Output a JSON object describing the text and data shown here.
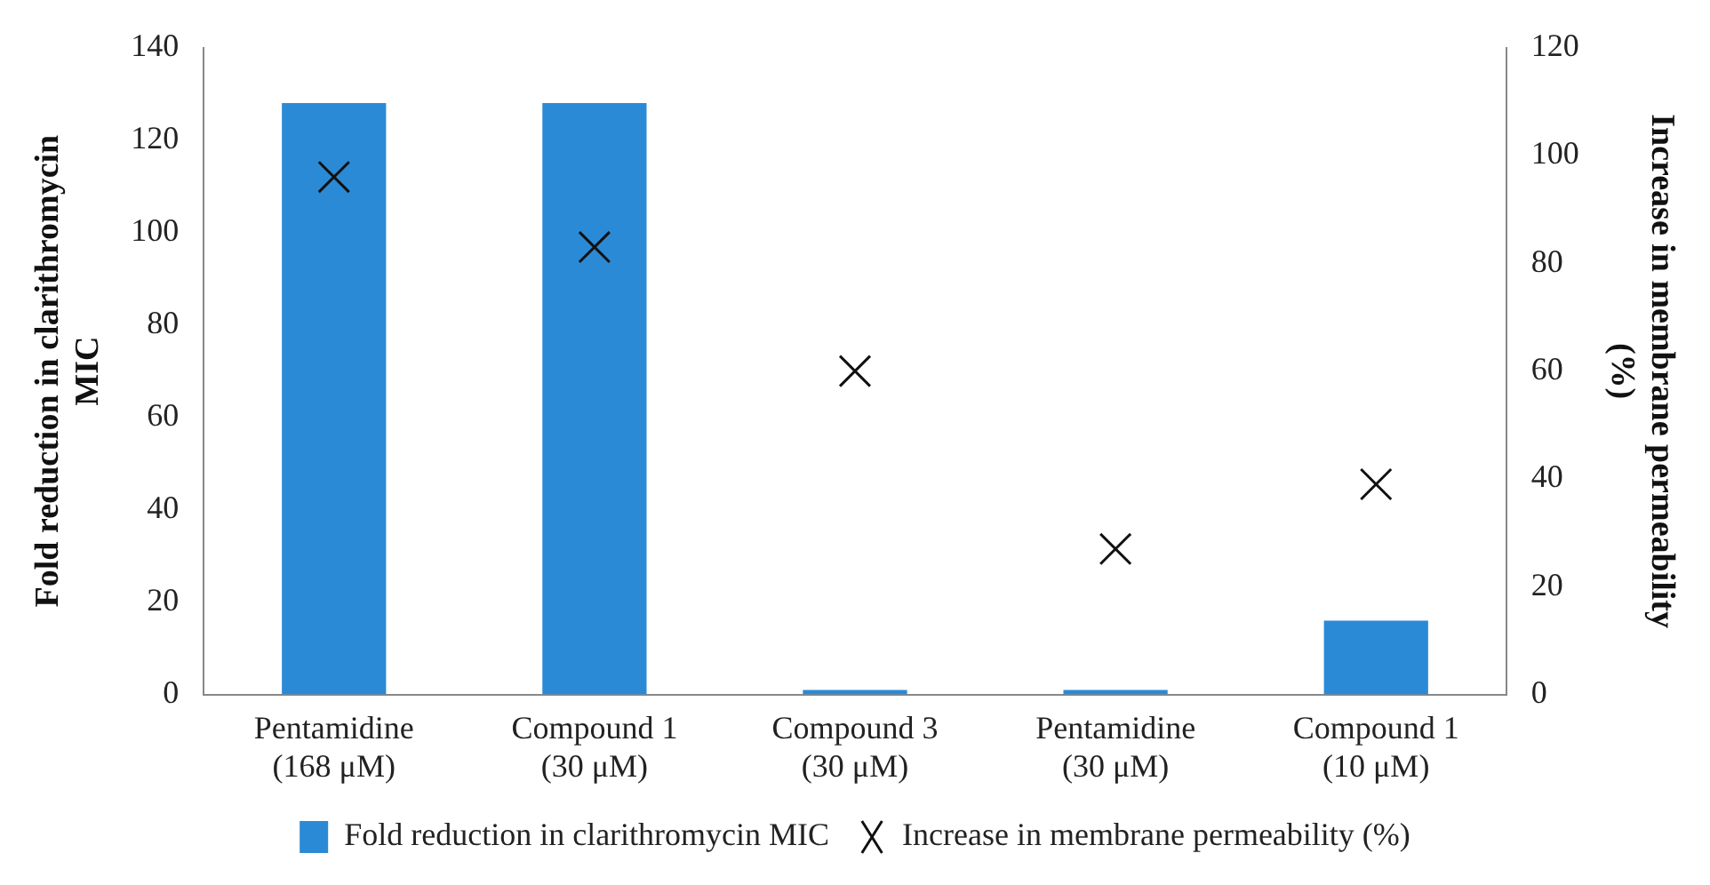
{
  "chart_data": {
    "type": "bar",
    "categories": [
      "Pentamidine (168 μM)",
      "Compound 1 (30 μM)",
      "Compound 3 (30 μM)",
      "Pentamidine (30 μM)",
      "Compound 1 (10 μM)"
    ],
    "series": [
      {
        "name": "Fold reduction in clarithromycin MIC",
        "color": "#2a8ad6",
        "values": [
          128,
          128,
          1,
          1,
          16
        ]
      },
      {
        "name": "Increase in membrane permeability (%)",
        "type": "scatter",
        "axis": "y2",
        "color": "#111111",
        "values": [
          96,
          83,
          60,
          27,
          39
        ]
      }
    ],
    "ylabel": "Fold reduction in clarithromycin MIC",
    "y2label": "Increase in membrane permeability (%)",
    "ylim": [
      0,
      140
    ],
    "yticks": [
      0,
      20,
      40,
      60,
      80,
      100,
      120,
      140
    ],
    "y2lim": [
      0,
      120
    ],
    "y2ticks": [
      0,
      20,
      40,
      60,
      80,
      100,
      120
    ],
    "grid": false,
    "legend": "bottom",
    "marker": "cross"
  }
}
